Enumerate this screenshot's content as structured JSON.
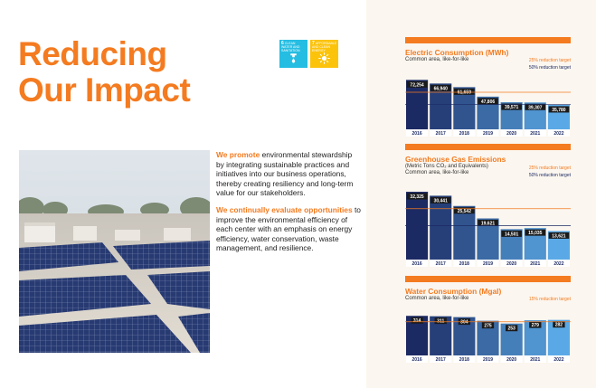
{
  "title_lines": [
    "Reducing",
    "Our Impact"
  ],
  "sdg_icons": [
    {
      "num": "6",
      "text": "CLEAN WATER AND SANITATION",
      "color": "#26bde2",
      "icon": "water-tap-icon"
    },
    {
      "num": "7",
      "text": "AFFORDABLE AND CLEAN ENERGY",
      "color": "#fcc30b",
      "icon": "sun-icon"
    }
  ],
  "body": {
    "p1_highlight": "We promote",
    "p1_text": " environmental stewardship by integrating sustainable practices and initiatives into our business operations, thereby creating resiliency and long-term value for our stakeholders.",
    "p2_highlight": "We continually evaluate opportunities",
    "p2_text": " to improve the environmental efficiency of each center with an emphasis on energy efficiency, water conservation, waste management, and resilience."
  },
  "panels": [
    {
      "title": "Electric Consumption (MWh)",
      "subtitle_lines": [
        "Common area, like-for-like"
      ],
      "legends": [
        "25% reduction target",
        "50% reduction target"
      ]
    },
    {
      "title": "Greenhouse Gas Emissions",
      "subtitle_lines": [
        "(Metric Tons CO₂ and Equivalents)",
        "Common area, like-for-like"
      ],
      "legends": [
        "25% reduction target",
        "50% reduction target"
      ]
    },
    {
      "title": "Water Consumption (Mgal)",
      "subtitle_lines": [
        "Common area, like-for-like"
      ],
      "legends": [
        "15% reduction target"
      ]
    }
  ],
  "colors": {
    "accent": "#f47b20",
    "navy": "#1c2a63",
    "bar_light": "#5aa9e6",
    "background_right": "#fbf6ef"
  },
  "chart_data": [
    {
      "type": "bar",
      "title": "Electric Consumption (MWh)",
      "subtitle": "Common area, like-for-like",
      "categories": [
        "2016",
        "2017",
        "2018",
        "2019",
        "2020",
        "2021",
        "2022"
      ],
      "values": [
        72254,
        66940,
        61659,
        47806,
        39571,
        39307,
        35780
      ],
      "value_labels": [
        "72,254",
        "66,940",
        "61,659",
        "47,806",
        "39,571",
        "39,307",
        "35,780"
      ],
      "ylim": [
        0,
        78000
      ],
      "targets": [
        {
          "label": "25% reduction target",
          "value": 54190
        },
        {
          "label": "50% reduction target",
          "value": 36127
        }
      ]
    },
    {
      "type": "bar",
      "title": "Greenhouse Gas Emissions",
      "subtitle": "(Metric Tons CO₂ and Equivalents) Common area, like-for-like",
      "categories": [
        "2016",
        "2017",
        "2018",
        "2019",
        "2020",
        "2021",
        "2022"
      ],
      "values": [
        32325,
        30441,
        25542,
        19621,
        14501,
        15035,
        13621
      ],
      "value_labels": [
        "32,325",
        "30,441",
        "25,542",
        "19,621",
        "14,501",
        "15,035",
        "13,621"
      ],
      "ylim": [
        0,
        34500
      ],
      "targets": [
        {
          "label": "25% reduction target",
          "value": 24244
        },
        {
          "label": "50% reduction target",
          "value": 16163
        }
      ]
    },
    {
      "type": "bar",
      "title": "Water Consumption (Mgal)",
      "subtitle": "Common area, like-for-like",
      "categories": [
        "2016",
        "2017",
        "2018",
        "2019",
        "2020",
        "2021",
        "2022"
      ],
      "values": [
        314,
        311,
        304,
        275,
        253,
        279,
        282
      ],
      "value_labels": [
        "314",
        "311",
        "304",
        "275",
        "253",
        "279",
        "282"
      ],
      "ylim": [
        0,
        330
      ],
      "targets": [
        {
          "label": "15% reduction target",
          "value": 267
        }
      ]
    }
  ]
}
